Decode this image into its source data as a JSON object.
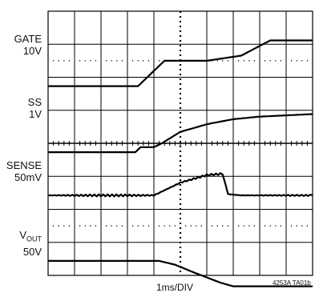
{
  "chart_data": {
    "type": "line",
    "title": "",
    "xlabel": "1ms/DIV",
    "figure_code": "4253A TA01b",
    "x_divisions": 10,
    "y_divisions": 8,
    "traces": [
      {
        "name": "GATE",
        "scale": "10V",
        "color": "#000000",
        "points": [
          [
            0,
            -2.0
          ],
          [
            3.4,
            -2.0
          ],
          [
            4.4,
            0
          ],
          [
            6.0,
            0
          ],
          [
            7.3,
            0.4
          ],
          [
            8.4,
            1.6
          ],
          [
            10,
            1.6
          ]
        ]
      },
      {
        "name": "SS",
        "scale": "1V",
        "color": "#000000",
        "points": [
          [
            0,
            -2.0
          ],
          [
            3.3,
            -2.0
          ],
          [
            3.5,
            -1.6
          ],
          [
            4.0,
            -1.6
          ],
          [
            4.3,
            -1.3
          ],
          [
            5.0,
            -0.4
          ],
          [
            6.0,
            0.2
          ],
          [
            7.0,
            0.6
          ],
          [
            8.0,
            0.8
          ],
          [
            9.0,
            0.9
          ],
          [
            10,
            1.0
          ]
        ]
      },
      {
        "name": "SENSE",
        "scale": "50mV",
        "color": "#000000",
        "points": [
          [
            0,
            -0.2
          ],
          [
            4.0,
            -0.2
          ],
          [
            5.0,
            0.8
          ],
          [
            6.0,
            1.4
          ],
          [
            6.6,
            1.5
          ],
          [
            6.8,
            -0.1
          ],
          [
            7.3,
            -0.2
          ],
          [
            10,
            -0.2
          ]
        ]
      },
      {
        "name": "VOUT",
        "scale": "50V",
        "color": "#000000",
        "points": [
          [
            0,
            0.1
          ],
          [
            4.2,
            0.1
          ],
          [
            4.8,
            -0.2
          ],
          [
            5.5,
            -0.8
          ],
          [
            6.5,
            -1.6
          ],
          [
            7.0,
            -1.9
          ],
          [
            10,
            -1.9
          ]
        ]
      }
    ]
  }
}
